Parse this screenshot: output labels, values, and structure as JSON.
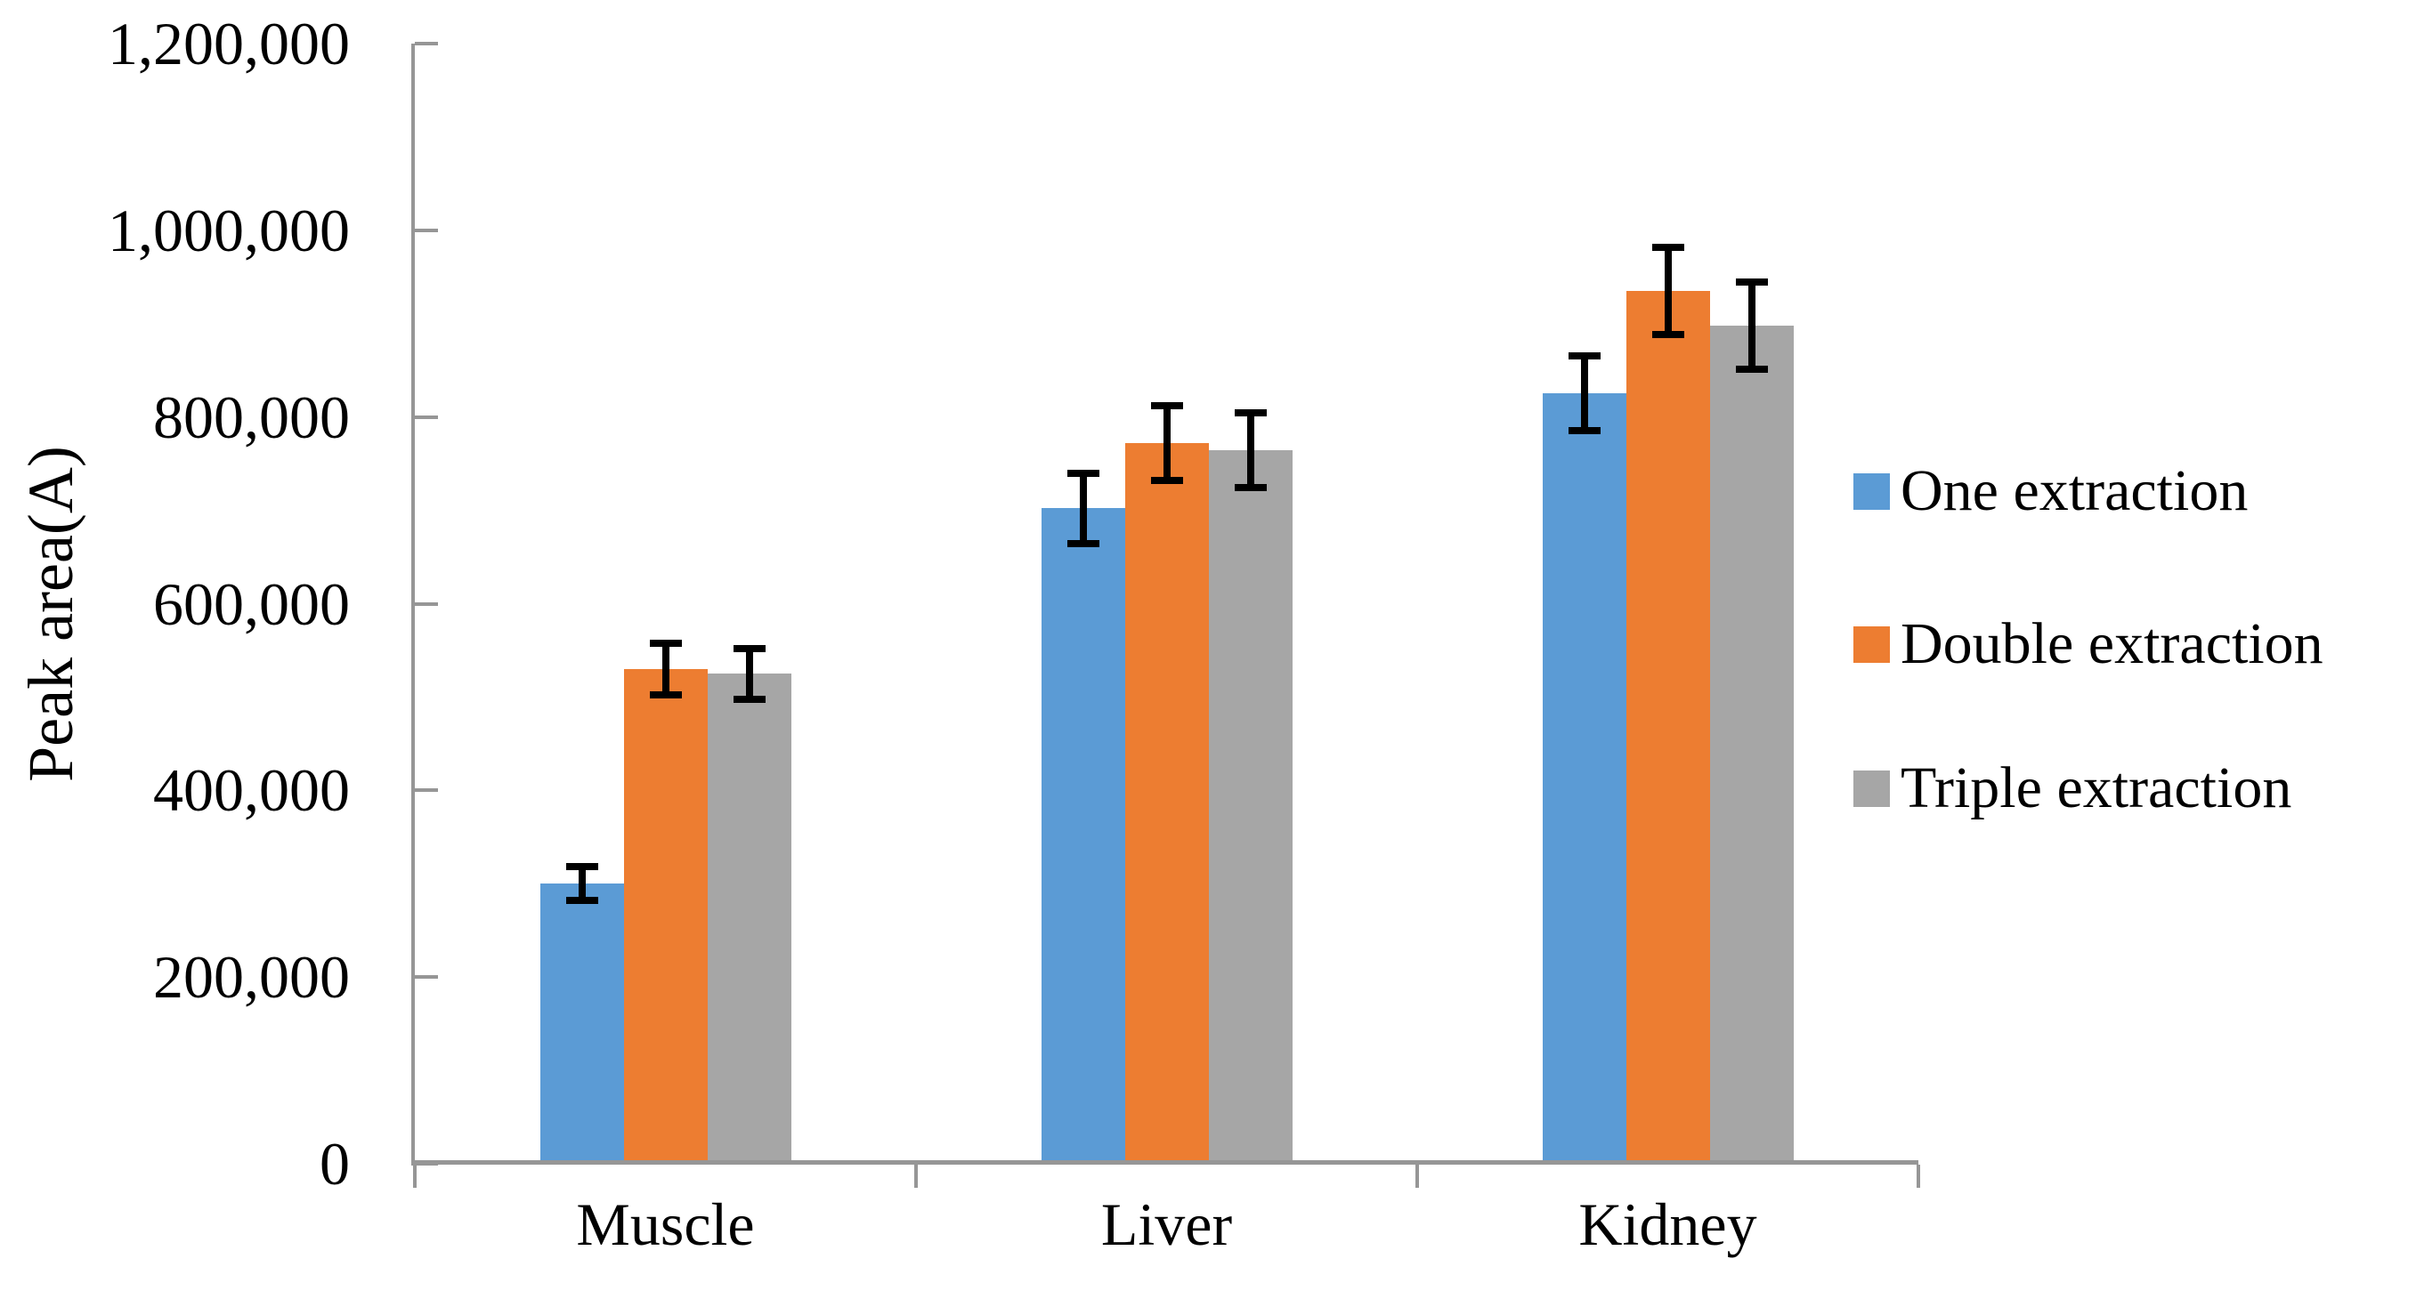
{
  "chart_data": {
    "type": "bar",
    "ylabel": "Peak area(A)",
    "categories": [
      "Muscle",
      "Liver",
      "Kidney"
    ],
    "series": [
      {
        "name": "One extraction",
        "color": "#5B9BD5",
        "values": [
          300000,
          702000,
          825000
        ],
        "errors": [
          18000,
          38000,
          40000
        ]
      },
      {
        "name": "Double extraction",
        "color": "#ED7D31",
        "values": [
          530000,
          772000,
          935000
        ],
        "errors": [
          28000,
          40000,
          47000
        ]
      },
      {
        "name": "Triple extraction",
        "color": "#A6A6A6",
        "values": [
          525000,
          764000,
          898000
        ],
        "errors": [
          27000,
          40000,
          47000
        ]
      }
    ],
    "ylim": [
      0,
      1200000
    ],
    "ytick_step": 200000,
    "ytick_labels": [
      "0",
      "200,000",
      "400,000",
      "600,000",
      "800,000",
      "1,000,000",
      "1,200,000"
    ],
    "legend_position": "right",
    "grid": false,
    "axis_color": "#969696",
    "error_bar_color": "#000000",
    "background_color": "#ffffff"
  }
}
